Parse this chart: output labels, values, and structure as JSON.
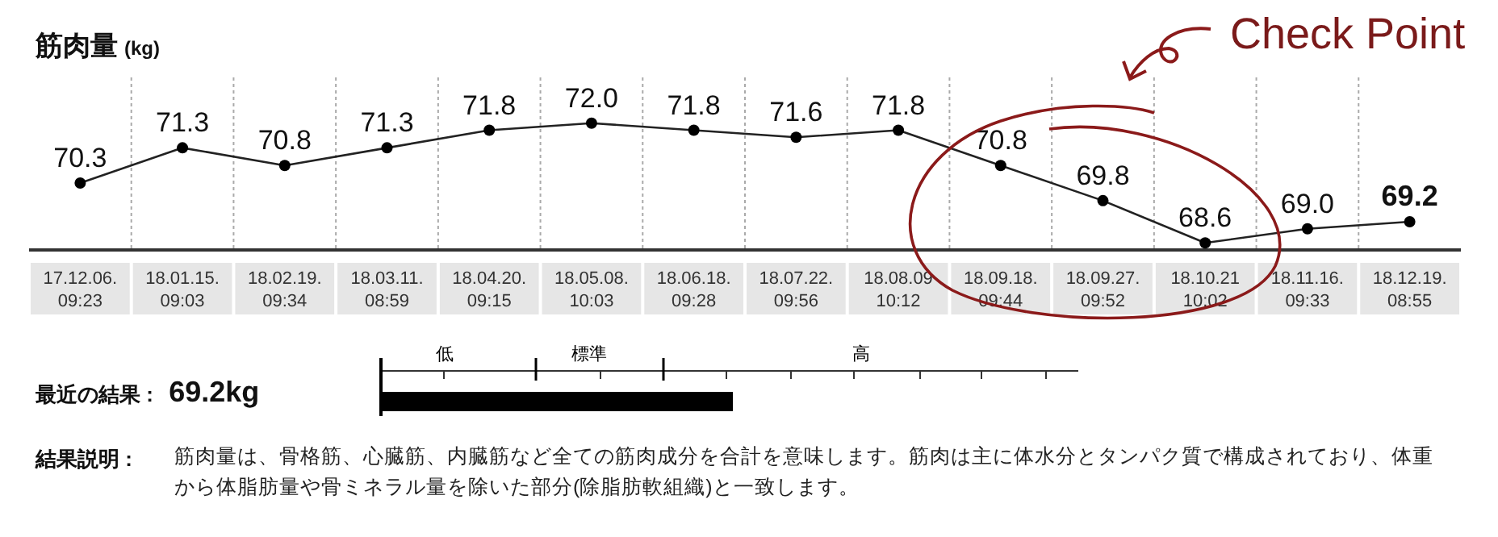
{
  "chart_data": {
    "type": "line",
    "title": "筋肉量",
    "ylabel": "(kg)",
    "categories": [
      "17.12.06. 09:23",
      "18.01.15. 09:03",
      "18.02.19. 09:34",
      "18.03.11. 08:59",
      "18.04.20. 09:15",
      "18.05.08. 10:03",
      "18.06.18. 09:28",
      "18.07.22. 09:56",
      "18.08.09 10:12",
      "18.09.18. 09:44",
      "18.09.27. 09:52",
      "18.10.21 10:02",
      "18.11.16. 09:33",
      "18.12.19. 08:55"
    ],
    "series": [
      {
        "color": "#222222",
        "values": [
          70.3,
          71.3,
          70.8,
          71.3,
          71.8,
          72.0,
          71.8,
          71.6,
          71.8,
          70.8,
          69.8,
          68.6,
          69.0,
          69.2
        ],
        "value_labels": [
          "70.3",
          "71.3",
          "70.8",
          "71.3",
          "71.8",
          "72.0",
          "71.8",
          "71.6",
          "71.8",
          "70.8",
          "69.8",
          "68.6",
          "69.0",
          "69.2"
        ]
      }
    ],
    "ylim": [
      68.4,
      73.3
    ],
    "marker": "circle",
    "grid": "x",
    "annotations": [
      "Check Point",
      "最近の結果 :",
      "69.2kg",
      "低",
      "標準",
      "高",
      "結果説明 :",
      "筋肉量は、骨格筋、心臓筋、内臓筋など全ての筋肉成分を合計を意味します。筋肉は主に体水分とタンパク質で構成されており、体重から体脂肪量や骨ミネラル量を除いた部分(除脂肪軟組織)と一致します。"
    ]
  }
}
